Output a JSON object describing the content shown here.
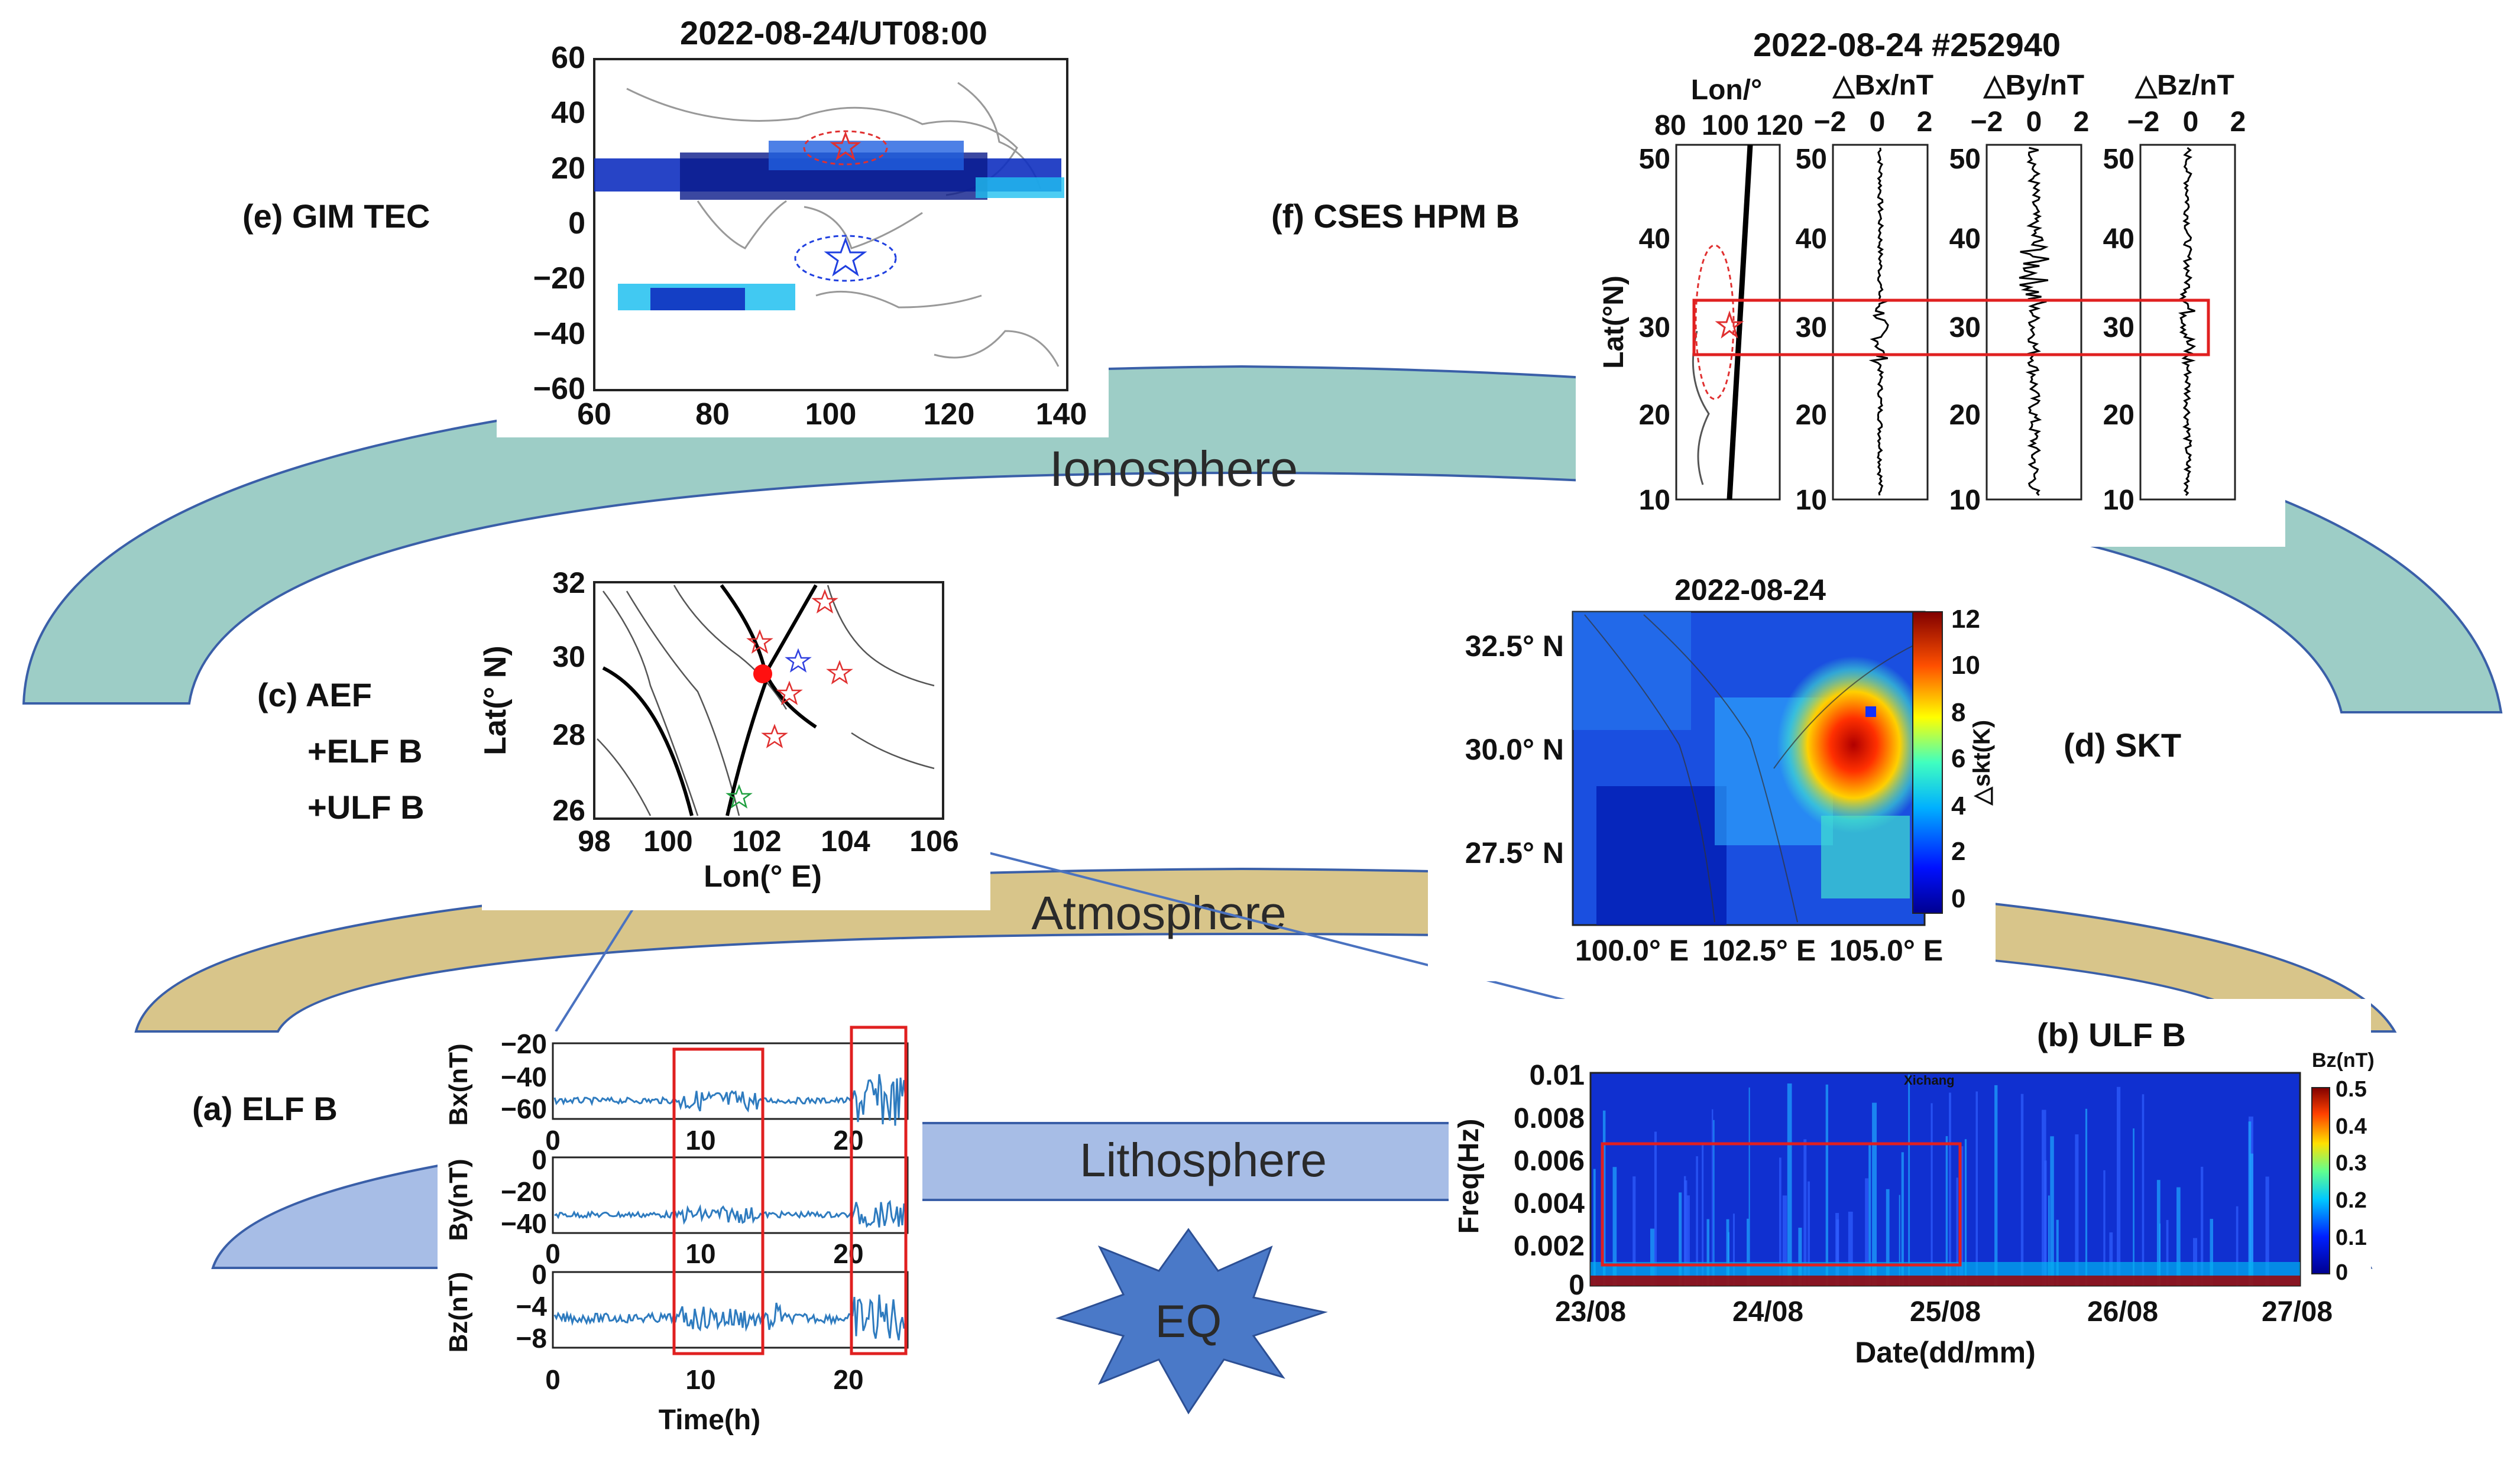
{
  "layers": {
    "ionosphere": "Ionosphere",
    "atmosphere": "Atmosphere",
    "lithosphere": "Lithosphere",
    "eq": "EQ"
  },
  "colors": {
    "ionosphere": "#9dcdc6",
    "atmosphere": "#d8c58a",
    "lithosphere": "#a7bde6",
    "arc_edge": "#3a5fa8",
    "eq": "#4a79c8",
    "signal": "#2e7bbf",
    "highlight": "#e02020"
  },
  "panels": {
    "e": {
      "label": "(e) GIM TEC",
      "title": "2022-08-24/UT08:00",
      "y_ticks": [
        "60",
        "40",
        "20",
        "0",
        "−20",
        "−40",
        "−60"
      ],
      "x_ticks": [
        "60",
        "80",
        "100",
        "120",
        "140"
      ]
    },
    "f": {
      "label": "(f) CSES HPM B",
      "title": "2022-08-24 #252940",
      "col_titles": [
        "Lon/°",
        "△Bx/nT",
        "△By/nT",
        "△Bz/nT"
      ],
      "lon_ticks": [
        "80",
        "100",
        "120"
      ],
      "db_ticks": [
        "−2",
        "0",
        "2"
      ],
      "lat_ticks": [
        "50",
        "40",
        "30",
        "20",
        "10"
      ],
      "ylabel": "Lat(°N)"
    },
    "c": {
      "label_lines": [
        "(c) AEF",
        "+ELF B",
        "+ULF B"
      ],
      "y_ticks": [
        "32",
        "30",
        "28",
        "26"
      ],
      "x_ticks": [
        "98",
        "100",
        "102",
        "104",
        "106"
      ],
      "xlabel": "Lon(° E)",
      "ylabel": "Lat(° N)"
    },
    "d": {
      "label": "(d) SKT",
      "title": "2022-08-24",
      "y_ticks": [
        "32.5° N",
        "30.0° N",
        "27.5° N"
      ],
      "x_ticks": [
        "100.0° E",
        "102.5° E",
        "105.0° E"
      ],
      "cbar_ticks": [
        "12",
        "10",
        "8",
        "6",
        "4",
        "2",
        "0"
      ],
      "cbar_label": "△skt(K)"
    },
    "a": {
      "label": "(a) ELF B",
      "xlabel": "Time(h)",
      "x_ticks": [
        "0",
        "10",
        "20"
      ],
      "rows": [
        {
          "ylabel": "Bx(nT)",
          "ticks": [
            "−20",
            "−40",
            "−60"
          ]
        },
        {
          "ylabel": "By(nT)",
          "ticks": [
            "0",
            "−20",
            "−40"
          ]
        },
        {
          "ylabel": "Bz(nT)",
          "ticks": [
            "0",
            "−4",
            "−8"
          ]
        }
      ]
    },
    "b": {
      "label": "(b) ULF B",
      "station": "Xichang",
      "ylabel": "Freq(Hz)",
      "xlabel": "Date(dd/mm)",
      "y_ticks": [
        "0.01",
        "0.008",
        "0.006",
        "0.004",
        "0.002",
        "0"
      ],
      "x_ticks": [
        "23/08",
        "24/08",
        "25/08",
        "26/08",
        "27/08"
      ],
      "cbar_title": "Bz(nT)",
      "cbar_ticks": [
        "0.5",
        "0.4",
        "0.3",
        "0.2",
        "0.1",
        "0"
      ]
    }
  }
}
